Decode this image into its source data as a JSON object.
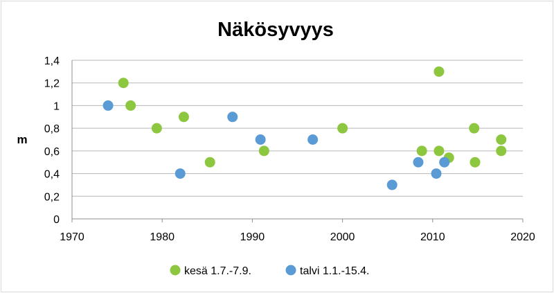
{
  "chart_data": {
    "type": "scatter",
    "title": "Näkösyvyys",
    "xlabel": "",
    "ylabel": "m",
    "xlim": [
      1970,
      2020
    ],
    "ylim": [
      0,
      1.4
    ],
    "x_ticks": [
      1970,
      1980,
      1990,
      2000,
      2010,
      2020
    ],
    "y_ticks": [
      0,
      0.2,
      0.4,
      0.6,
      0.8,
      1,
      1.2,
      1.4
    ],
    "y_tick_labels": [
      "0",
      "0,2",
      "0,4",
      "0,6",
      "0,8",
      "1",
      "1,2",
      "1,4"
    ],
    "grid": "horizontal",
    "legend_position": "bottom",
    "series": [
      {
        "name": "kesä 1.7.-7.9.",
        "color": "#8dc63f",
        "points": [
          {
            "x": 1975.7,
            "y": 1.2
          },
          {
            "x": 1976.5,
            "y": 1.0
          },
          {
            "x": 1979.4,
            "y": 0.8
          },
          {
            "x": 1982.4,
            "y": 0.9
          },
          {
            "x": 1985.3,
            "y": 0.5
          },
          {
            "x": 1991.3,
            "y": 0.6
          },
          {
            "x": 2000.0,
            "y": 0.8
          },
          {
            "x": 2008.8,
            "y": 0.6
          },
          {
            "x": 2010.7,
            "y": 1.3
          },
          {
            "x": 2010.7,
            "y": 0.6
          },
          {
            "x": 2011.8,
            "y": 0.54
          },
          {
            "x": 2014.6,
            "y": 0.8
          },
          {
            "x": 2014.7,
            "y": 0.5
          },
          {
            "x": 2017.6,
            "y": 0.7
          },
          {
            "x": 2017.6,
            "y": 0.6
          }
        ]
      },
      {
        "name": "talvi 1.1.-15.4.",
        "color": "#5b9bd5",
        "points": [
          {
            "x": 1974.0,
            "y": 1.0
          },
          {
            "x": 1982.0,
            "y": 0.4
          },
          {
            "x": 1987.8,
            "y": 0.9
          },
          {
            "x": 1990.9,
            "y": 0.7
          },
          {
            "x": 1996.7,
            "y": 0.7
          },
          {
            "x": 2005.5,
            "y": 0.3
          },
          {
            "x": 2008.4,
            "y": 0.5
          },
          {
            "x": 2010.4,
            "y": 0.4
          },
          {
            "x": 2011.3,
            "y": 0.5
          }
        ]
      }
    ]
  }
}
